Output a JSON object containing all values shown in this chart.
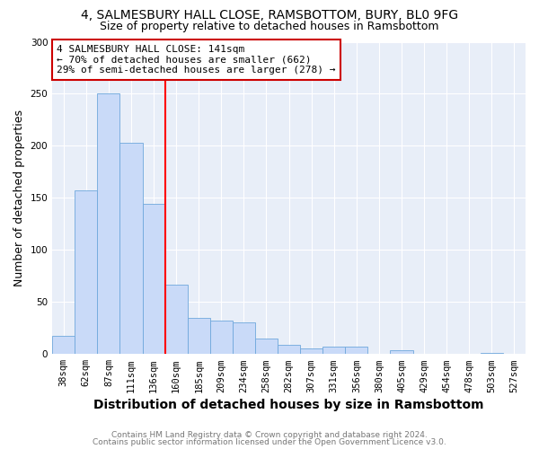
{
  "title1": "4, SALMESBURY HALL CLOSE, RAMSBOTTOM, BURY, BL0 9FG",
  "title2": "Size of property relative to detached houses in Ramsbottom",
  "xlabel": "Distribution of detached houses by size in Ramsbottom",
  "ylabel": "Number of detached properties",
  "footer1": "Contains HM Land Registry data © Crown copyright and database right 2024.",
  "footer2": "Contains public sector information licensed under the Open Government Licence v3.0.",
  "bin_labels": [
    "38sqm",
    "62sqm",
    "87sqm",
    "111sqm",
    "136sqm",
    "160sqm",
    "185sqm",
    "209sqm",
    "234sqm",
    "258sqm",
    "282sqm",
    "307sqm",
    "331sqm",
    "356sqm",
    "380sqm",
    "405sqm",
    "429sqm",
    "454sqm",
    "478sqm",
    "503sqm",
    "527sqm"
  ],
  "bar_heights": [
    17,
    157,
    250,
    203,
    144,
    67,
    35,
    32,
    30,
    15,
    9,
    5,
    7,
    7,
    0,
    4,
    0,
    0,
    0,
    1,
    0
  ],
  "bar_color": "#c9daf8",
  "bar_edge_color": "#6fa8dc",
  "red_line_index": 4,
  "red_line_label": "4 SALMESBURY HALL CLOSE: 141sqm",
  "annotation_line2": "← 70% of detached houses are smaller (662)",
  "annotation_line3": "29% of semi-detached houses are larger (278) →",
  "ylim": [
    0,
    300
  ],
  "yticks": [
    0,
    50,
    100,
    150,
    200,
    250,
    300
  ],
  "fig_background": "#ffffff",
  "plot_background": "#e8eef8",
  "grid_color": "#ffffff",
  "title_fontsize": 10,
  "subtitle_fontsize": 9,
  "axis_label_fontsize": 9,
  "tick_fontsize": 7.5,
  "annotation_box_facecolor": "#ffffff",
  "annotation_box_edgecolor": "#cc0000"
}
